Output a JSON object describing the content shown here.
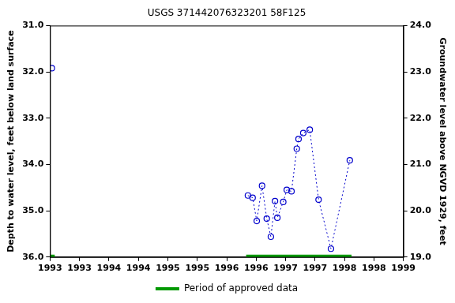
{
  "chart_data": {
    "type": "line",
    "title": "USGS 371442076323201 58F125",
    "ylabel": "Depth to water level, feet below land surface",
    "y2label": "Groundwater level above NGVD 1929, feet",
    "x": [
      1993.03,
      1996.36,
      1996.44,
      1996.51,
      1996.6,
      1996.68,
      1996.75,
      1996.82,
      1996.86,
      1996.96,
      1997.02,
      1997.1,
      1997.19,
      1997.22,
      1997.3,
      1997.41,
      1997.56,
      1997.77,
      1998.09
    ],
    "values": [
      31.92,
      34.67,
      34.72,
      35.22,
      34.46,
      35.17,
      35.56,
      34.79,
      35.15,
      34.81,
      34.55,
      34.58,
      33.66,
      33.45,
      33.32,
      33.25,
      34.76,
      35.82,
      33.91
    ],
    "color": "#0000cc",
    "marker": "circle",
    "line_style": "dotted",
    "xlim": [
      1993,
      1999
    ],
    "xticks": [
      {
        "value": 1993,
        "label": "1993"
      },
      {
        "value": 1993.5,
        "label": "1993"
      },
      {
        "value": 1994,
        "label": "1994"
      },
      {
        "value": 1994.5,
        "label": "1994"
      },
      {
        "value": 1995,
        "label": "1995"
      },
      {
        "value": 1995.5,
        "label": "1995"
      },
      {
        "value": 1996,
        "label": "1996"
      },
      {
        "value": 1996.5,
        "label": "1996"
      },
      {
        "value": 1997,
        "label": "1997"
      },
      {
        "value": 1997.5,
        "label": "1997"
      },
      {
        "value": 1998,
        "label": "1998"
      },
      {
        "value": 1998.5,
        "label": "1998"
      },
      {
        "value": 1999,
        "label": "1999"
      }
    ],
    "ylim": [
      36,
      31
    ],
    "yticks": [
      {
        "value": 31,
        "label": "31.0"
      },
      {
        "value": 32,
        "label": "32.0"
      },
      {
        "value": 33,
        "label": "33.0"
      },
      {
        "value": 34,
        "label": "34.0"
      },
      {
        "value": 35,
        "label": "35.0"
      },
      {
        "value": 36,
        "label": "36.0"
      }
    ],
    "y2lim": [
      19,
      24
    ],
    "y2ticks": [
      {
        "value": 19,
        "label": "19.0"
      },
      {
        "value": 20,
        "label": "20.0"
      },
      {
        "value": 21,
        "label": "21.0"
      },
      {
        "value": 22,
        "label": "22.0"
      },
      {
        "value": 23,
        "label": "23.0"
      },
      {
        "value": 24,
        "label": "24.0"
      }
    ],
    "approved_periods": {
      "name": "Period of approved data",
      "color": "#009900",
      "ranges": [
        [
          1993.0,
          1993.08
        ],
        [
          1996.33,
          1998.12
        ]
      ]
    },
    "grid": false,
    "legend": "bottom"
  }
}
